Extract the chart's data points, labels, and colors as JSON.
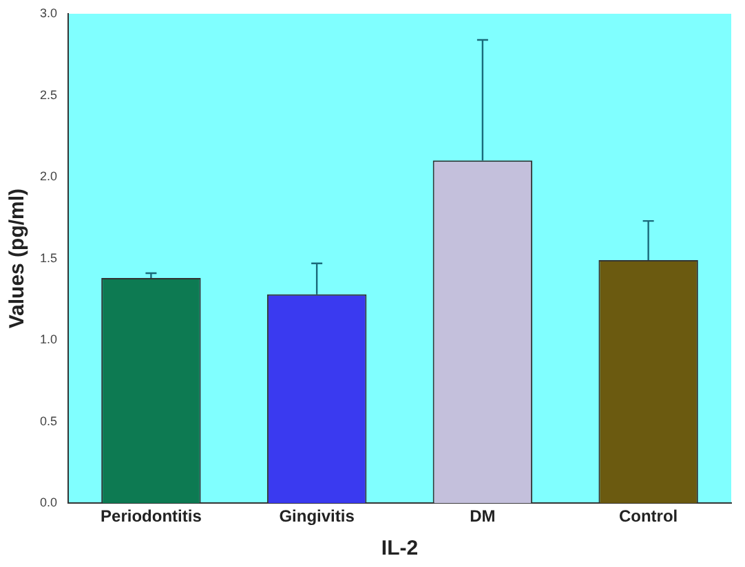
{
  "chart_data": {
    "type": "bar",
    "xlabel": "IL-2",
    "ylabel": "Values (pg/ml)",
    "categories": [
      "Periodontitis",
      "Gingivitis",
      "DM",
      "Control"
    ],
    "values": [
      1.38,
      1.28,
      2.1,
      1.49
    ],
    "colors": [
      "#0d7a52",
      "#3a3af0",
      "#c4c0dc",
      "#6b5a10"
    ],
    "errors": [
      [
        1.38,
        1.41
      ],
      [
        1.28,
        1.47
      ],
      [
        2.1,
        2.84
      ],
      [
        1.49,
        1.73
      ]
    ],
    "ylim": [
      0,
      3
    ],
    "yticks": [
      {
        "value": 0,
        "label": "0.0"
      },
      {
        "value": 0.5,
        "label": "0.5"
      },
      {
        "value": 1,
        "label": "1.0"
      },
      {
        "value": 1.5,
        "label": "1.5"
      },
      {
        "value": 2,
        "label": "2.0"
      },
      {
        "value": 2.5,
        "label": "2.5"
      },
      {
        "value": 3,
        "label": "3.0"
      }
    ],
    "grid": false,
    "legend": false
  }
}
